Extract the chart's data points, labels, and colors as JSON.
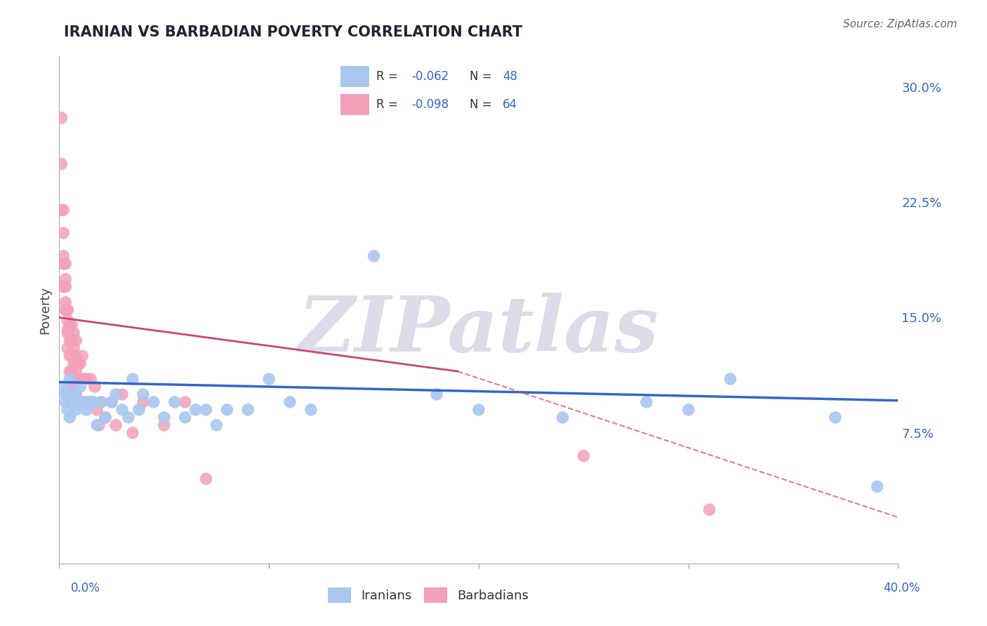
{
  "title": "IRANIAN VS BARBADIAN POVERTY CORRELATION CHART",
  "source": "Source: ZipAtlas.com",
  "ylabel": "Poverty",
  "y_ticks_right": [
    0.0,
    0.075,
    0.15,
    0.225,
    0.3
  ],
  "y_tick_labels_right": [
    "",
    "7.5%",
    "15.0%",
    "22.5%",
    "30.0%"
  ],
  "x_lim": [
    0.0,
    0.4
  ],
  "y_lim": [
    -0.01,
    0.32
  ],
  "iranian_R": -0.062,
  "iranian_N": 48,
  "barbadian_R": -0.098,
  "barbadian_N": 64,
  "iranian_color": "#A8C8F0",
  "barbadian_color": "#F4A0B8",
  "iranian_line_color": "#3366CC",
  "barbadian_line_color": "#CC4477",
  "background_color": "#ffffff",
  "watermark_color": "#DCDCE8",
  "grid_color": "#CCCCDD",
  "iranians_x": [
    0.002,
    0.003,
    0.003,
    0.004,
    0.004,
    0.005,
    0.005,
    0.006,
    0.007,
    0.008,
    0.009,
    0.01,
    0.011,
    0.012,
    0.013,
    0.015,
    0.016,
    0.018,
    0.02,
    0.022,
    0.025,
    0.027,
    0.03,
    0.033,
    0.035,
    0.038,
    0.04,
    0.045,
    0.05,
    0.055,
    0.06,
    0.065,
    0.07,
    0.075,
    0.08,
    0.09,
    0.1,
    0.11,
    0.12,
    0.15,
    0.18,
    0.2,
    0.24,
    0.28,
    0.3,
    0.32,
    0.37,
    0.39
  ],
  "iranians_y": [
    0.105,
    0.1,
    0.095,
    0.1,
    0.09,
    0.11,
    0.085,
    0.095,
    0.1,
    0.09,
    0.095,
    0.105,
    0.095,
    0.095,
    0.09,
    0.095,
    0.095,
    0.08,
    0.095,
    0.085,
    0.095,
    0.1,
    0.09,
    0.085,
    0.11,
    0.09,
    0.1,
    0.095,
    0.085,
    0.095,
    0.085,
    0.09,
    0.09,
    0.08,
    0.09,
    0.09,
    0.11,
    0.095,
    0.09,
    0.19,
    0.1,
    0.09,
    0.085,
    0.095,
    0.09,
    0.11,
    0.085,
    0.04
  ],
  "barbadians_x": [
    0.001,
    0.001,
    0.001,
    0.002,
    0.002,
    0.002,
    0.002,
    0.002,
    0.003,
    0.003,
    0.003,
    0.003,
    0.003,
    0.003,
    0.004,
    0.004,
    0.004,
    0.004,
    0.004,
    0.004,
    0.005,
    0.005,
    0.005,
    0.005,
    0.005,
    0.006,
    0.006,
    0.006,
    0.006,
    0.006,
    0.007,
    0.007,
    0.007,
    0.007,
    0.008,
    0.008,
    0.008,
    0.008,
    0.009,
    0.009,
    0.01,
    0.01,
    0.01,
    0.011,
    0.012,
    0.013,
    0.014,
    0.015,
    0.016,
    0.017,
    0.018,
    0.019,
    0.02,
    0.022,
    0.025,
    0.027,
    0.03,
    0.035,
    0.04,
    0.05,
    0.06,
    0.07,
    0.25,
    0.31
  ],
  "barbadians_y": [
    0.28,
    0.25,
    0.22,
    0.22,
    0.205,
    0.19,
    0.185,
    0.17,
    0.185,
    0.175,
    0.16,
    0.155,
    0.17,
    0.155,
    0.155,
    0.148,
    0.142,
    0.155,
    0.14,
    0.13,
    0.145,
    0.135,
    0.125,
    0.115,
    0.105,
    0.145,
    0.135,
    0.125,
    0.115,
    0.1,
    0.14,
    0.13,
    0.12,
    0.105,
    0.135,
    0.125,
    0.115,
    0.1,
    0.12,
    0.11,
    0.12,
    0.11,
    0.095,
    0.125,
    0.11,
    0.11,
    0.095,
    0.11,
    0.095,
    0.105,
    0.09,
    0.08,
    0.095,
    0.085,
    0.095,
    0.08,
    0.1,
    0.075,
    0.095,
    0.08,
    0.095,
    0.045,
    0.06,
    0.025
  ],
  "iran_line_x0": 0.0,
  "iran_line_x1": 0.4,
  "iran_line_y0": 0.108,
  "iran_line_y1": 0.096,
  "barb_line_solid_x0": 0.0,
  "barb_line_solid_x1": 0.19,
  "barb_line_solid_y0": 0.15,
  "barb_line_solid_y1": 0.115,
  "barb_line_dash_x0": 0.19,
  "barb_line_dash_x1": 0.4,
  "barb_line_dash_y0": 0.115,
  "barb_line_dash_y1": 0.02
}
